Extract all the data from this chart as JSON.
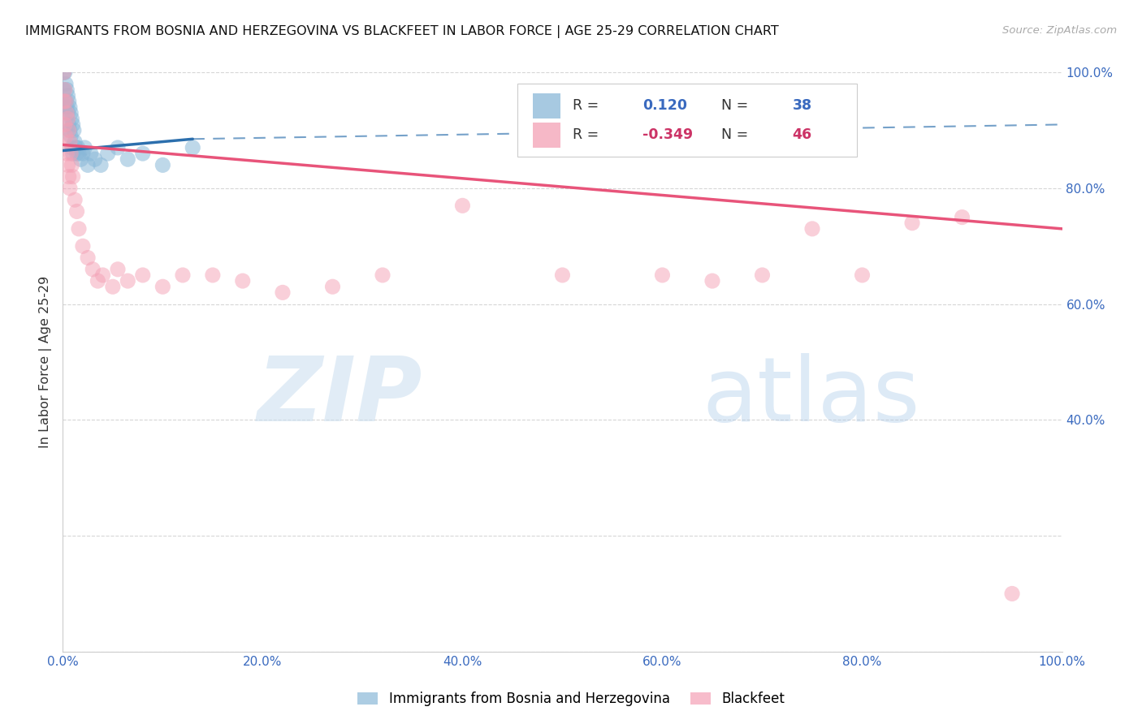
{
  "title": "IMMIGRANTS FROM BOSNIA AND HERZEGOVINA VS BLACKFEET IN LABOR FORCE | AGE 25-29 CORRELATION CHART",
  "source": "Source: ZipAtlas.com",
  "ylabel": "In Labor Force | Age 25-29",
  "xlim": [
    0.0,
    1.0
  ],
  "ylim": [
    0.0,
    1.0
  ],
  "blue_R": 0.12,
  "blue_N": 38,
  "pink_R": -0.349,
  "pink_N": 46,
  "blue_color": "#8ab8d8",
  "pink_color": "#f4a0b5",
  "blue_line_color": "#2c6fad",
  "pink_line_color": "#e8547a",
  "legend_label_blue": "Immigrants from Bosnia and Herzegovina",
  "legend_label_pink": "Blackfeet",
  "right_ytick_vals": [
    0.4,
    0.6,
    0.8,
    1.0
  ],
  "right_ytick_labels": [
    "40.0%",
    "60.0%",
    "80.0%",
    "100.0%"
  ],
  "xtick_vals": [
    0.0,
    0.2,
    0.4,
    0.6,
    0.8,
    1.0
  ],
  "xtick_labels": [
    "0.0%",
    "20.0%",
    "40.0%",
    "60.0%",
    "80.0%",
    "100.0%"
  ],
  "blue_line_x0": 0.0,
  "blue_line_y0": 0.865,
  "blue_line_x1": 0.13,
  "blue_line_y1": 0.885,
  "blue_line_dash_x1": 1.0,
  "blue_line_dash_y1": 0.91,
  "pink_line_x0": 0.0,
  "pink_line_y0": 0.875,
  "pink_line_x1": 1.0,
  "pink_line_y1": 0.73,
  "blue_scatter_x": [
    0.001,
    0.001,
    0.002,
    0.003,
    0.003,
    0.004,
    0.004,
    0.005,
    0.005,
    0.006,
    0.006,
    0.007,
    0.007,
    0.008,
    0.008,
    0.009,
    0.009,
    0.01,
    0.01,
    0.011,
    0.012,
    0.013,
    0.014,
    0.015,
    0.016,
    0.018,
    0.02,
    0.022,
    0.025,
    0.028,
    0.032,
    0.038,
    0.045,
    0.055,
    0.065,
    0.08,
    0.1,
    0.13
  ],
  "blue_scatter_y": [
    1.0,
    0.97,
    1.0,
    0.98,
    0.95,
    0.97,
    0.94,
    0.96,
    0.93,
    0.95,
    0.91,
    0.94,
    0.9,
    0.93,
    0.89,
    0.92,
    0.87,
    0.91,
    0.86,
    0.9,
    0.88,
    0.87,
    0.86,
    0.87,
    0.86,
    0.85,
    0.86,
    0.87,
    0.84,
    0.86,
    0.85,
    0.84,
    0.86,
    0.87,
    0.85,
    0.86,
    0.84,
    0.87
  ],
  "pink_scatter_x": [
    0.001,
    0.001,
    0.002,
    0.002,
    0.003,
    0.003,
    0.004,
    0.004,
    0.005,
    0.005,
    0.006,
    0.006,
    0.007,
    0.007,
    0.008,
    0.009,
    0.01,
    0.012,
    0.014,
    0.016,
    0.02,
    0.025,
    0.03,
    0.035,
    0.04,
    0.05,
    0.055,
    0.065,
    0.08,
    0.1,
    0.12,
    0.15,
    0.18,
    0.22,
    0.27,
    0.32,
    0.4,
    0.5,
    0.6,
    0.65,
    0.7,
    0.75,
    0.8,
    0.85,
    0.9,
    0.95
  ],
  "pink_scatter_y": [
    1.0,
    0.95,
    0.97,
    0.91,
    0.95,
    0.89,
    0.93,
    0.86,
    0.92,
    0.84,
    0.9,
    0.82,
    0.88,
    0.8,
    0.86,
    0.84,
    0.82,
    0.78,
    0.76,
    0.73,
    0.7,
    0.68,
    0.66,
    0.64,
    0.65,
    0.63,
    0.66,
    0.64,
    0.65,
    0.63,
    0.65,
    0.65,
    0.64,
    0.62,
    0.63,
    0.65,
    0.77,
    0.65,
    0.65,
    0.64,
    0.65,
    0.73,
    0.65,
    0.74,
    0.75,
    0.1
  ]
}
